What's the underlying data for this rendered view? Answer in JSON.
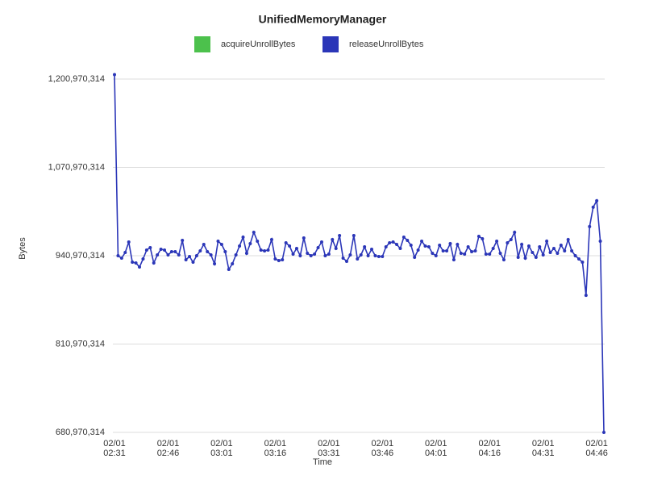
{
  "chart_data": {
    "type": "line",
    "title": "UnifiedMemoryManager",
    "x_label": "Time",
    "y_label": "Bytes",
    "x": [
      "02/01 02:31",
      "02/01 02:32",
      "02/01 02:33",
      "02/01 02:34",
      "02/01 02:35",
      "02/01 02:36",
      "02/01 02:37",
      "02/01 02:38",
      "02/01 02:39",
      "02/01 02:40",
      "02/01 02:41",
      "02/01 02:42",
      "02/01 02:43",
      "02/01 02:44",
      "02/01 02:45",
      "02/01 02:46",
      "02/01 02:47",
      "02/01 02:48",
      "02/01 02:49",
      "02/01 02:50",
      "02/01 02:51",
      "02/01 02:52",
      "02/01 02:53",
      "02/01 02:54",
      "02/01 02:55",
      "02/01 02:56",
      "02/01 02:57",
      "02/01 02:58",
      "02/01 02:59",
      "02/01 03:00",
      "02/01 03:01",
      "02/01 03:02",
      "02/01 03:03",
      "02/01 03:04",
      "02/01 03:05",
      "02/01 03:06",
      "02/01 03:07",
      "02/01 03:08",
      "02/01 03:09",
      "02/01 03:10",
      "02/01 03:11",
      "02/01 03:12",
      "02/01 03:13",
      "02/01 03:14",
      "02/01 03:15",
      "02/01 03:16",
      "02/01 03:17",
      "02/01 03:18",
      "02/01 03:19",
      "02/01 03:20",
      "02/01 03:21",
      "02/01 03:22",
      "02/01 03:23",
      "02/01 03:24",
      "02/01 03:25",
      "02/01 03:26",
      "02/01 03:27",
      "02/01 03:28",
      "02/01 03:29",
      "02/01 03:30",
      "02/01 03:31",
      "02/01 03:32",
      "02/01 03:33",
      "02/01 03:34",
      "02/01 03:35",
      "02/01 03:36",
      "02/01 03:37",
      "02/01 03:38",
      "02/01 03:39",
      "02/01 03:40",
      "02/01 03:41",
      "02/01 03:42",
      "02/01 03:43",
      "02/01 03:44",
      "02/01 03:45",
      "02/01 03:46",
      "02/01 03:47",
      "02/01 03:48",
      "02/01 03:49",
      "02/01 03:50",
      "02/01 03:51",
      "02/01 03:52",
      "02/01 03:53",
      "02/01 03:54",
      "02/01 03:55",
      "02/01 03:56",
      "02/01 03:57",
      "02/01 03:58",
      "02/01 03:59",
      "02/01 04:00",
      "02/01 04:01",
      "02/01 04:02",
      "02/01 04:03",
      "02/01 04:04",
      "02/01 04:05",
      "02/01 04:06",
      "02/01 04:07",
      "02/01 04:08",
      "02/01 04:09",
      "02/01 04:10",
      "02/01 04:11",
      "02/01 04:12",
      "02/01 04:13",
      "02/01 04:14",
      "02/01 04:15",
      "02/01 04:16",
      "02/01 04:17",
      "02/01 04:18",
      "02/01 04:19",
      "02/01 04:20",
      "02/01 04:21",
      "02/01 04:22",
      "02/01 04:23",
      "02/01 04:24",
      "02/01 04:25",
      "02/01 04:26",
      "02/01 04:27",
      "02/01 04:28",
      "02/01 04:29",
      "02/01 04:30",
      "02/01 04:31",
      "02/01 04:32",
      "02/01 04:33",
      "02/01 04:34",
      "02/01 04:35",
      "02/01 04:36",
      "02/01 04:37",
      "02/01 04:38",
      "02/01 04:39",
      "02/01 04:40",
      "02/01 04:41",
      "02/01 04:42",
      "02/01 04:43",
      "02/01 04:44",
      "02/01 04:45",
      "02/01 04:46",
      "02/01 04:47",
      "02/01 04:48"
    ],
    "series": [
      {
        "name": "acquireUnrollBytes",
        "color": "#4cc14c",
        "values": [
          null,
          null,
          null,
          null,
          null,
          null,
          null,
          null,
          null,
          null,
          null,
          null,
          null,
          null,
          null,
          null,
          null,
          null,
          null,
          null,
          null,
          null,
          null,
          null,
          null,
          null,
          null,
          null,
          null,
          null,
          null,
          null,
          null,
          null,
          null,
          null,
          null,
          null,
          null,
          null,
          null,
          null,
          null,
          null,
          null,
          null,
          null,
          null,
          null,
          null,
          null,
          null,
          null,
          null,
          null,
          null,
          null,
          null,
          null,
          null,
          null,
          null,
          null,
          null,
          null,
          null,
          null,
          null,
          null,
          null,
          null,
          null,
          null,
          null,
          null,
          null,
          null,
          null,
          null,
          null,
          null,
          null,
          null,
          null,
          null,
          null,
          null,
          null,
          null,
          null,
          null,
          null,
          null,
          null,
          null,
          null,
          null,
          null,
          null,
          null,
          null,
          null,
          null,
          null,
          null,
          null,
          null,
          null,
          null,
          null,
          null,
          null,
          null,
          null,
          null,
          null,
          null,
          null,
          null,
          null,
          null,
          null,
          null,
          null,
          null,
          null,
          null,
          null,
          null,
          null,
          null,
          null,
          null,
          null,
          null,
          null,
          null,
          null
        ]
      },
      {
        "name": "releaseUnrollBytes",
        "color": "#2b36b8",
        "values": [
          1207530314,
          940970314,
          937400314,
          945730314,
          961200314,
          931450314,
          930260314,
          924310314,
          936210314,
          949300314,
          952870314,
          930260314,
          942160314,
          950490314,
          949300314,
          942160314,
          946920314,
          946920314,
          942160314,
          963580314,
          935020314,
          939780314,
          931450314,
          940970314,
          948110314,
          957630314,
          946920314,
          942160314,
          929070314,
          962390314,
          957630314,
          946920314,
          920740314,
          929070314,
          942160314,
          955250314,
          968340314,
          944540314,
          958820314,
          975480314,
          962390314,
          949300314,
          948110314,
          949300314,
          964770314,
          936210314,
          933830314,
          935020314,
          960010314,
          955250314,
          943350314,
          951680314,
          940970314,
          967150314,
          944540314,
          940970314,
          943350314,
          952870314,
          961200314,
          940970314,
          943350314,
          964770314,
          951680314,
          970720314,
          937400314,
          932640314,
          942160314,
          970720314,
          936210314,
          942160314,
          954060314,
          940970314,
          950490314,
          940970314,
          939780314,
          939780314,
          954060314,
          960010314,
          961200314,
          957630314,
          951680314,
          968340314,
          963580314,
          956440314,
          938590314,
          949300314,
          962390314,
          955250314,
          954060314,
          944540314,
          940970314,
          956440314,
          948110314,
          948110314,
          958820314,
          935020314,
          957630314,
          944540314,
          943350314,
          954060314,
          946920314,
          948110314,
          969530314,
          965960314,
          943350314,
          943350314,
          951680314,
          962390314,
          944540314,
          935020314,
          960010314,
          964770314,
          975480314,
          938590314,
          957630314,
          937400314,
          955250314,
          945730314,
          938590314,
          954060314,
          942160314,
          962390314,
          945730314,
          951680314,
          944540314,
          956440314,
          948110314,
          964770314,
          948110314,
          940970314,
          936210314,
          931450314,
          882660314,
          983810314,
          1012370314,
          1021890314,
          962390314,
          680970314
        ]
      }
    ],
    "ylim": [
      680970314,
      1210970314
    ],
    "yticks": [
      {
        "value": 680970314,
        "label": "680,970,314"
      },
      {
        "value": 810970314,
        "label": "810,970,314"
      },
      {
        "value": 940970314,
        "label": "940,970,314"
      },
      {
        "value": 1070970314,
        "label": "1,070,970,314"
      },
      {
        "value": 1200970314,
        "label": "1,200,970,314"
      }
    ],
    "grid": true
  }
}
